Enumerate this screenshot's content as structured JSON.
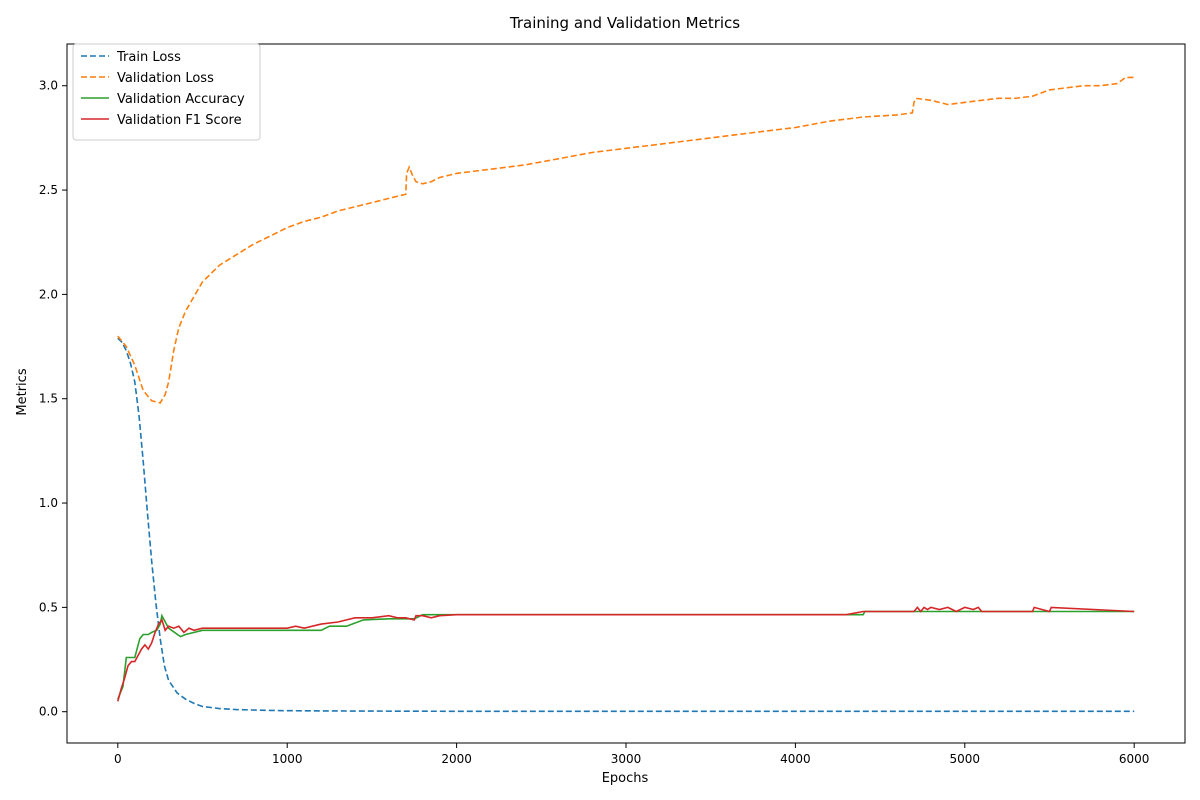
{
  "chart_data": {
    "type": "line",
    "title": "Training and Validation Metrics",
    "xlabel": "Epochs",
    "ylabel": "Metrics",
    "xlim": [
      -300,
      6300
    ],
    "ylim": [
      -0.15,
      3.2
    ],
    "x_ticks": [
      0,
      1000,
      2000,
      3000,
      4000,
      5000,
      6000
    ],
    "y_ticks": [
      0.0,
      0.5,
      1.0,
      1.5,
      2.0,
      2.5,
      3.0
    ],
    "grid": false,
    "legend_position": "upper-left",
    "series": [
      {
        "name": "Train Loss",
        "color": "#1f77b4",
        "dashed": true,
        "x": [
          0,
          25,
          50,
          75,
          100,
          125,
          150,
          175,
          200,
          225,
          250,
          275,
          300,
          325,
          350,
          400,
          450,
          500,
          550,
          600,
          700,
          800,
          900,
          1000,
          1200,
          1500,
          2000,
          2500,
          3000,
          3500,
          4000,
          4500,
          5000,
          5500,
          6000
        ],
        "y": [
          1.79,
          1.77,
          1.73,
          1.67,
          1.58,
          1.42,
          1.2,
          0.95,
          0.72,
          0.52,
          0.35,
          0.22,
          0.15,
          0.12,
          0.09,
          0.06,
          0.04,
          0.025,
          0.02,
          0.015,
          0.01,
          0.008,
          0.006,
          0.005,
          0.004,
          0.003,
          0.002,
          0.002,
          0.002,
          0.002,
          0.002,
          0.002,
          0.002,
          0.002,
          0.002
        ]
      },
      {
        "name": "Validation Loss",
        "color": "#ff7f0e",
        "dashed": true,
        "x": [
          0,
          50,
          100,
          150,
          200,
          250,
          280,
          300,
          330,
          360,
          400,
          450,
          500,
          600,
          700,
          800,
          900,
          1000,
          1100,
          1200,
          1300,
          1400,
          1500,
          1600,
          1700,
          1705,
          1720,
          1740,
          1760,
          1800,
          1850,
          1900,
          2000,
          2200,
          2400,
          2600,
          2800,
          3000,
          3200,
          3400,
          3600,
          3800,
          4000,
          4200,
          4400,
          4600,
          4690,
          4700,
          4710,
          4800,
          4900,
          5000,
          5100,
          5200,
          5300,
          5400,
          5500,
          5600,
          5700,
          5800,
          5900,
          5950,
          6000
        ],
        "y": [
          1.8,
          1.75,
          1.66,
          1.54,
          1.49,
          1.48,
          1.52,
          1.58,
          1.73,
          1.84,
          1.92,
          1.99,
          2.06,
          2.14,
          2.19,
          2.24,
          2.28,
          2.32,
          2.35,
          2.37,
          2.4,
          2.42,
          2.44,
          2.46,
          2.48,
          2.58,
          2.61,
          2.57,
          2.54,
          2.53,
          2.54,
          2.56,
          2.58,
          2.6,
          2.62,
          2.65,
          2.68,
          2.7,
          2.72,
          2.74,
          2.76,
          2.78,
          2.8,
          2.83,
          2.85,
          2.86,
          2.87,
          2.92,
          2.94,
          2.93,
          2.91,
          2.92,
          2.93,
          2.94,
          2.94,
          2.95,
          2.98,
          2.99,
          3.0,
          3.0,
          3.01,
          3.04,
          3.04
        ]
      },
      {
        "name": "Validation Accuracy",
        "color": "#2ca02c",
        "dashed": false,
        "x": [
          0,
          30,
          50,
          100,
          130,
          150,
          180,
          200,
          230,
          250,
          260,
          300,
          370,
          400,
          500,
          800,
          1000,
          1200,
          1250,
          1350,
          1450,
          1600,
          1700,
          1750,
          1800,
          2000,
          3000,
          4000,
          4400,
          4410,
          5000,
          6000
        ],
        "y": [
          0.06,
          0.12,
          0.26,
          0.26,
          0.35,
          0.37,
          0.37,
          0.38,
          0.39,
          0.42,
          0.46,
          0.4,
          0.36,
          0.37,
          0.39,
          0.39,
          0.39,
          0.39,
          0.41,
          0.41,
          0.44,
          0.445,
          0.445,
          0.445,
          0.465,
          0.465,
          0.465,
          0.465,
          0.465,
          0.48,
          0.48,
          0.48
        ]
      },
      {
        "name": "Validation F1 Score",
        "color": "#d62728",
        "dashed": false,
        "x": [
          0,
          20,
          40,
          60,
          80,
          100,
          120,
          140,
          160,
          180,
          200,
          220,
          240,
          260,
          280,
          300,
          330,
          360,
          390,
          420,
          450,
          500,
          600,
          700,
          800,
          900,
          1000,
          1050,
          1100,
          1200,
          1300,
          1350,
          1400,
          1450,
          1500,
          1600,
          1650,
          1700,
          1750,
          1760,
          1800,
          1850,
          1900,
          2000,
          3000,
          4000,
          4300,
          4400,
          4700,
          4720,
          4740,
          4760,
          4780,
          4800,
          4850,
          4900,
          4950,
          5000,
          5050,
          5080,
          5100,
          5400,
          5410,
          5500,
          5510,
          6000
        ],
        "y": [
          0.05,
          0.11,
          0.16,
          0.22,
          0.24,
          0.24,
          0.27,
          0.3,
          0.32,
          0.3,
          0.33,
          0.38,
          0.42,
          0.44,
          0.39,
          0.41,
          0.4,
          0.41,
          0.38,
          0.4,
          0.39,
          0.4,
          0.4,
          0.4,
          0.4,
          0.4,
          0.4,
          0.41,
          0.4,
          0.42,
          0.43,
          0.44,
          0.45,
          0.45,
          0.45,
          0.46,
          0.45,
          0.45,
          0.44,
          0.46,
          0.46,
          0.45,
          0.46,
          0.465,
          0.465,
          0.465,
          0.465,
          0.48,
          0.48,
          0.5,
          0.48,
          0.5,
          0.49,
          0.5,
          0.49,
          0.5,
          0.48,
          0.5,
          0.49,
          0.5,
          0.48,
          0.48,
          0.5,
          0.48,
          0.5,
          0.48
        ]
      }
    ]
  }
}
